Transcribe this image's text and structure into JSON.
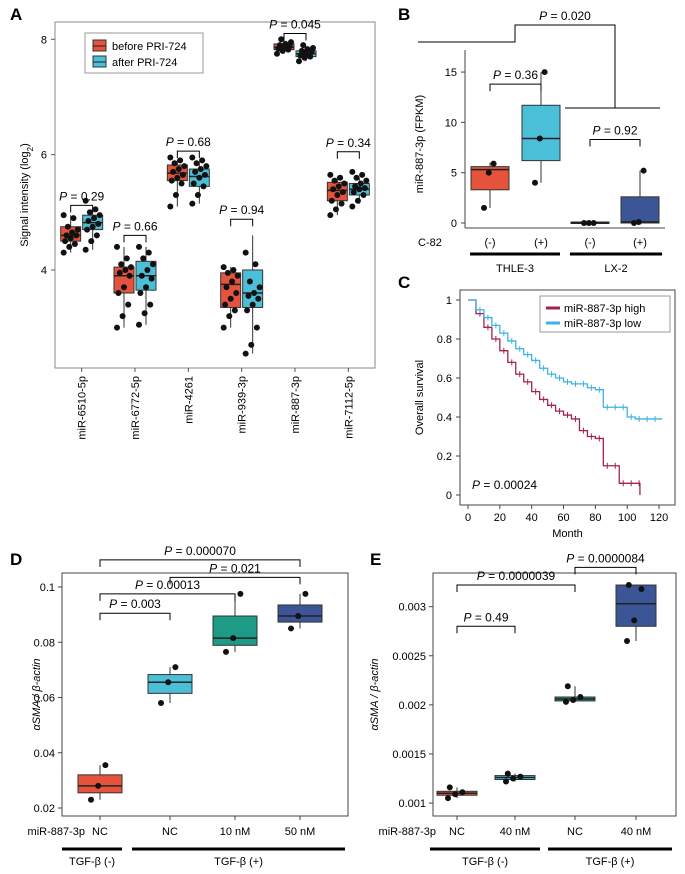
{
  "colors": {
    "red": "#e5533d",
    "cyan": "#4cbfd8",
    "navy": "#3b5596",
    "green": "#1e9b86",
    "crimson": "#a3234f",
    "sky": "#3fb1e6",
    "grey": "#7f7f7f"
  },
  "chart_data": [
    {
      "panel": "A",
      "type": "box",
      "ylabel": "Signal intensity (log2)",
      "ylabel_main": "Signal intensity (log",
      "ylabel_sub": "2",
      "ylabel_end": ")",
      "ylim": [
        2.3,
        8.3
      ],
      "yticks": [
        4,
        6,
        8
      ],
      "legend": {
        "position": "top-left",
        "items": [
          "before PRI-724",
          "after PRI-724"
        ]
      },
      "categories": [
        "miR-6510-5p",
        "miR-6772-5p",
        "miR-4261",
        "miR-939-3p",
        "miR-887-3p",
        "miR-7112-5p"
      ],
      "series": [
        {
          "name": "before PRI-724",
          "color": "red",
          "boxes": [
            {
              "min": 4.3,
              "q1": 4.5,
              "med": 4.6,
              "q3": 4.75,
              "max": 4.95,
              "points": [
                4.3,
                4.4,
                4.45,
                4.5,
                4.55,
                4.6,
                4.6,
                4.65,
                4.7,
                4.75,
                4.9,
                4.95
              ]
            },
            {
              "min": 3.0,
              "q1": 3.6,
              "med": 3.9,
              "q3": 4.05,
              "max": 4.4,
              "points": [
                3.0,
                3.2,
                3.4,
                3.6,
                3.7,
                3.9,
                3.95,
                4.0,
                4.05,
                4.1,
                4.2,
                4.4
              ]
            },
            {
              "min": 5.1,
              "q1": 5.55,
              "med": 5.68,
              "q3": 5.82,
              "max": 5.9,
              "points": [
                5.1,
                5.3,
                5.5,
                5.55,
                5.6,
                5.65,
                5.7,
                5.75,
                5.8,
                5.85,
                5.9,
                5.95
              ]
            },
            {
              "min": 3.0,
              "q1": 3.35,
              "med": 3.75,
              "q3": 3.95,
              "max": 4.05,
              "points": [
                3.0,
                3.2,
                3.3,
                3.4,
                3.5,
                3.6,
                3.7,
                3.8,
                3.9,
                3.95,
                4.0,
                4.05
              ]
            },
            {
              "min": 7.75,
              "q1": 7.82,
              "med": 7.86,
              "q3": 7.92,
              "max": 8.0,
              "points": [
                7.75,
                7.8,
                7.82,
                7.84,
                7.86,
                7.88,
                7.9,
                7.92,
                7.95,
                8.0
              ]
            },
            {
              "min": 4.95,
              "q1": 5.2,
              "med": 5.38,
              "q3": 5.52,
              "max": 5.62,
              "points": [
                4.95,
                5.05,
                5.15,
                5.2,
                5.3,
                5.35,
                5.4,
                5.45,
                5.5,
                5.55,
                5.6,
                5.65
              ]
            }
          ]
        },
        {
          "name": "after PRI-724",
          "color": "cyan",
          "boxes": [
            {
              "min": 4.35,
              "q1": 4.7,
              "med": 4.82,
              "q3": 4.95,
              "max": 5.05,
              "points": [
                4.35,
                4.5,
                4.6,
                4.7,
                4.75,
                4.8,
                4.85,
                4.9,
                4.95,
                5.0,
                5.05,
                5.2
              ]
            },
            {
              "min": 3.05,
              "q1": 3.65,
              "med": 3.9,
              "q3": 4.15,
              "max": 4.4,
              "points": [
                3.05,
                3.25,
                3.4,
                3.6,
                3.7,
                3.85,
                3.9,
                4.0,
                4.1,
                4.2,
                4.3,
                4.4
              ]
            },
            {
              "min": 5.15,
              "q1": 5.45,
              "med": 5.62,
              "q3": 5.75,
              "max": 5.88,
              "points": [
                5.15,
                5.3,
                5.45,
                5.5,
                5.6,
                5.65,
                5.7,
                5.75,
                5.8,
                5.85,
                5.9,
                5.95
              ]
            },
            {
              "min": 2.55,
              "q1": 3.35,
              "med": 3.6,
              "q3": 4.0,
              "max": 4.6,
              "points": [
                2.55,
                2.7,
                3.0,
                3.3,
                3.4,
                3.5,
                3.55,
                3.6,
                3.7,
                3.8,
                4.1,
                4.3
              ]
            },
            {
              "min": 7.62,
              "q1": 7.7,
              "med": 7.75,
              "q3": 7.8,
              "max": 7.85,
              "points": [
                7.62,
                7.68,
                7.7,
                7.72,
                7.75,
                7.78,
                7.8,
                7.83,
                7.85,
                7.9
              ]
            },
            {
              "min": 5.15,
              "q1": 5.3,
              "med": 5.4,
              "q3": 5.5,
              "max": 5.6,
              "points": [
                5.1,
                5.2,
                5.3,
                5.35,
                5.4,
                5.42,
                5.45,
                5.5,
                5.55,
                5.6,
                5.65,
                5.7
              ]
            }
          ]
        }
      ],
      "pvalues": [
        {
          "cat": 0,
          "text": "P = 0.29",
          "y": 5.12
        },
        {
          "cat": 1,
          "text": "P = 0.66",
          "y": 4.6
        },
        {
          "cat": 2,
          "text": "P = 0.68",
          "y": 6.06
        },
        {
          "cat": 3,
          "text": "P = 0.94",
          "y": 4.88
        },
        {
          "cat": 4,
          "text": "P = 0.045",
          "y": 8.1
        },
        {
          "cat": 5,
          "text": "P = 0.34",
          "y": 6.05
        }
      ]
    },
    {
      "panel": "B",
      "type": "box",
      "ylabel": "miR-887-3p (FPKM)",
      "ylim": [
        0,
        16
      ],
      "yticks": [
        0,
        5,
        10,
        15
      ],
      "row_label": "C-82",
      "categories": [
        "(-)",
        "(+)",
        "(-)",
        "(+)"
      ],
      "group_labels": [
        "THLE-3",
        "LX-2"
      ],
      "boxes": [
        {
          "color": "red",
          "min": 1.5,
          "q1": 3.3,
          "med": 5.3,
          "q3": 5.6,
          "max": 6.0,
          "points": [
            1.5,
            5.0,
            5.9
          ]
        },
        {
          "color": "cyan",
          "min": 4.0,
          "q1": 6.2,
          "med": 8.4,
          "q3": 11.7,
          "max": 15.0,
          "points": [
            4.0,
            8.4,
            15.0
          ]
        },
        {
          "color": "navy",
          "min": 0.0,
          "q1": 0.0,
          "med": 0.0,
          "q3": 0.1,
          "max": 0.1,
          "points": [
            0.0,
            0.0,
            0.0
          ]
        },
        {
          "color": "navy",
          "min": 0.0,
          "q1": 0.0,
          "med": 0.1,
          "q3": 2.6,
          "max": 5.2,
          "points": [
            0.0,
            0.1,
            5.2
          ]
        }
      ],
      "pvalues": [
        {
          "text": "P = 0.36",
          "between": [
            0,
            1
          ],
          "y": 13.8
        },
        {
          "text": "P = 0.92",
          "between": [
            2,
            3
          ],
          "y": 8.3
        },
        {
          "text": "P = 0.020",
          "y": 19.0
        }
      ]
    },
    {
      "panel": "C",
      "type": "line",
      "title": "",
      "xlabel": "Month",
      "ylabel": "Overall survival",
      "xlim": [
        0,
        125
      ],
      "ylim": [
        0,
        1
      ],
      "xticks": [
        0,
        20,
        40,
        60,
        80,
        100,
        120
      ],
      "yticks": [
        0,
        0.2,
        0.4,
        0.6,
        0.8,
        1
      ],
      "legend": {
        "position": "top-right",
        "items": [
          "miR-887-3p high",
          "miR-887-3p low"
        ]
      },
      "annotation": "P = 0.00024",
      "series": [
        {
          "name": "miR-887-3p high",
          "color": "crimson",
          "x": [
            0,
            5,
            10,
            15,
            20,
            25,
            30,
            35,
            40,
            45,
            50,
            55,
            60,
            65,
            70,
            75,
            80,
            85,
            90,
            95,
            100,
            105,
            108
          ],
          "y": [
            1.0,
            0.93,
            0.86,
            0.8,
            0.74,
            0.68,
            0.62,
            0.58,
            0.53,
            0.49,
            0.46,
            0.43,
            0.41,
            0.39,
            0.33,
            0.3,
            0.29,
            0.15,
            0.15,
            0.06,
            0.06,
            0.06,
            0.0
          ]
        },
        {
          "name": "miR-887-3p low",
          "color": "sky",
          "x": [
            0,
            5,
            10,
            15,
            20,
            25,
            30,
            35,
            40,
            45,
            50,
            55,
            60,
            65,
            70,
            75,
            80,
            85,
            90,
            95,
            100,
            105,
            110,
            115,
            122
          ],
          "y": [
            1.0,
            0.95,
            0.91,
            0.87,
            0.83,
            0.79,
            0.75,
            0.72,
            0.69,
            0.65,
            0.62,
            0.6,
            0.58,
            0.57,
            0.57,
            0.55,
            0.54,
            0.45,
            0.45,
            0.45,
            0.4,
            0.39,
            0.39,
            0.39,
            0.39
          ]
        }
      ]
    },
    {
      "panel": "D",
      "type": "box",
      "ylabel": "αSMA / β-actin",
      "ylim": [
        0.02,
        0.1
      ],
      "yticks": [
        0.02,
        0.04,
        0.06,
        0.08,
        0.1
      ],
      "ytick_labels": [
        "0.02",
        "0.04",
        "0.06",
        "0.08",
        "0.1"
      ],
      "row_label": "miR-887-3p",
      "categories": [
        "NC",
        "NC",
        "10 nM",
        "50 nM"
      ],
      "group_labels": [
        "TGF-β (-)",
        "TGF-β (+)"
      ],
      "boxes": [
        {
          "color": "red",
          "min": 0.023,
          "q1": 0.0255,
          "med": 0.028,
          "q3": 0.032,
          "max": 0.0355,
          "points": [
            0.023,
            0.028,
            0.0355
          ]
        },
        {
          "color": "cyan",
          "min": 0.058,
          "q1": 0.0615,
          "med": 0.0655,
          "q3": 0.0683,
          "max": 0.071,
          "points": [
            0.058,
            0.0655,
            0.071
          ]
        },
        {
          "color": "green",
          "min": 0.0765,
          "q1": 0.0789,
          "med": 0.0815,
          "q3": 0.0895,
          "max": 0.0975,
          "points": [
            0.0765,
            0.0815,
            0.0975
          ]
        },
        {
          "color": "navy",
          "min": 0.085,
          "q1": 0.0873,
          "med": 0.0895,
          "q3": 0.0935,
          "max": 0.0975,
          "points": [
            0.085,
            0.0895,
            0.0975
          ]
        }
      ],
      "pvalues": [
        {
          "text": "P = 0.003",
          "between": [
            0,
            1
          ],
          "y": 0.0905
        },
        {
          "text": "P = 0.00013",
          "between": [
            0,
            2
          ],
          "y": 0.0975
        },
        {
          "text": "P = 0.021",
          "between": [
            1,
            3
          ],
          "y": 0.1035
        },
        {
          "text": "P = 0.000070",
          "between": [
            0,
            3
          ],
          "y": 0.1098
        }
      ]
    },
    {
      "panel": "E",
      "type": "box",
      "ylabel": "αSMA / β-actin",
      "ylim": [
        0.00095,
        0.0032
      ],
      "yticks": [
        0.001,
        0.0015,
        0.002,
        0.0025,
        0.003
      ],
      "ytick_labels": [
        "0.001",
        "0.0015",
        "0.002",
        "0.0025",
        "0.003"
      ],
      "row_label": "miR-887-3p",
      "categories": [
        "NC",
        "40 nM",
        "NC",
        "40 nM"
      ],
      "group_labels": [
        "TGF-β (-)",
        "TGF-β (+)"
      ],
      "boxes": [
        {
          "color": "red",
          "min": 0.00105,
          "q1": 0.00108,
          "med": 0.0011,
          "q3": 0.00112,
          "max": 0.00116,
          "points": [
            0.00105,
            0.00109,
            0.00111,
            0.00116
          ]
        },
        {
          "color": "cyan",
          "min": 0.00122,
          "q1": 0.00124,
          "med": 0.00126,
          "q3": 0.00128,
          "max": 0.0013,
          "points": [
            0.00122,
            0.00125,
            0.00127,
            0.0013
          ]
        },
        {
          "color": "green",
          "min": 0.00203,
          "q1": 0.00204,
          "med": 0.00206,
          "q3": 0.00208,
          "max": 0.00219,
          "points": [
            0.00203,
            0.00205,
            0.00208,
            0.00219
          ]
        },
        {
          "color": "navy",
          "min": 0.00265,
          "q1": 0.0028,
          "med": 0.00303,
          "q3": 0.00322,
          "max": 0.00322,
          "points": [
            0.00265,
            0.00286,
            0.00318,
            0.00322
          ]
        }
      ],
      "pvalues": [
        {
          "text": "P = 0.49",
          "between": [
            0,
            1
          ],
          "y": 0.0028
        },
        {
          "text": "P = 0.0000039",
          "between": [
            0,
            2
          ],
          "y": 0.00322
        },
        {
          "text": "P = 0.0000084",
          "between": [
            2,
            3
          ],
          "y": 0.0034
        }
      ]
    }
  ]
}
